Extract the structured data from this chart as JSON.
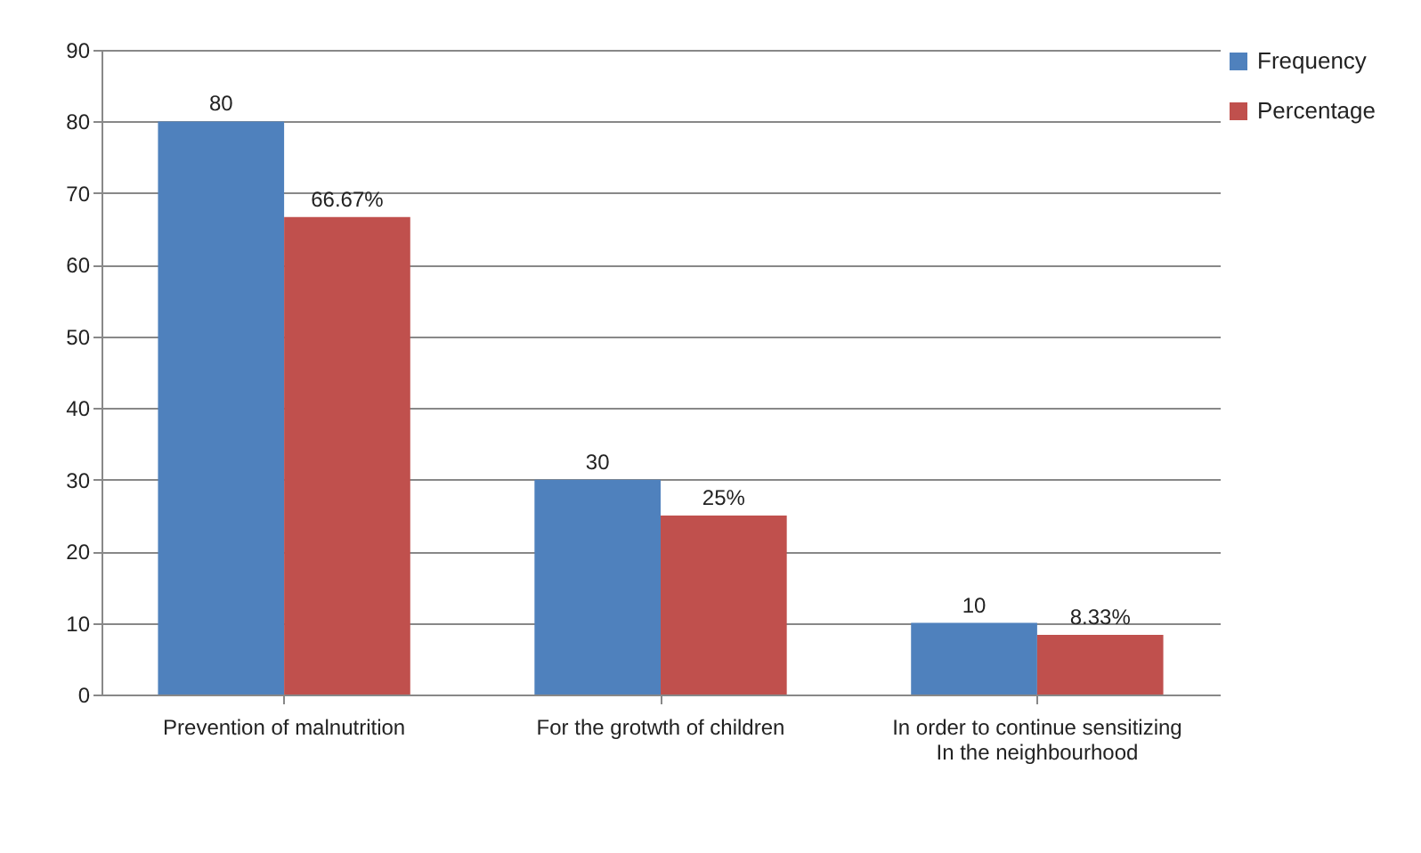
{
  "chart_data": {
    "type": "bar",
    "categories": [
      "Prevention of malnutrition",
      "For the grotwth of children",
      "In order to continue sensitizing\nIn the neighbourhood"
    ],
    "series": [
      {
        "name": "Frequency",
        "color": "#4f81bd",
        "values": [
          80,
          30,
          10
        ],
        "value_labels": [
          "80",
          "30",
          "10"
        ]
      },
      {
        "name": "Percentage",
        "color": "#c0504d",
        "values": [
          66.67,
          25,
          8.33
        ],
        "value_labels": [
          "66.67%",
          "25%",
          "8.33%"
        ]
      }
    ],
    "ylim": [
      0,
      90
    ],
    "yticks": [
      0,
      10,
      20,
      30,
      40,
      50,
      60,
      70,
      80,
      90
    ],
    "grid": "y",
    "legend": "right"
  }
}
